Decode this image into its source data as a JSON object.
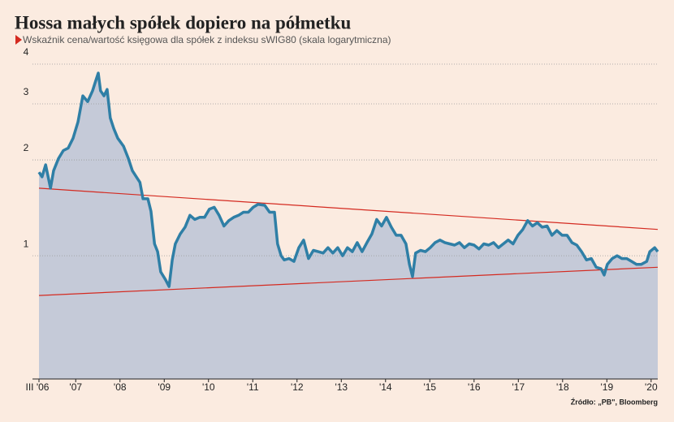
{
  "chart_data": {
    "type": "line",
    "title": "Hossa małych spółek dopiero na półmetku",
    "subtitle": "Wskaźnik cena/wartość księgowa dla spółek z indeksu sWIG80 (skala logarytmiczna)",
    "source": "Źródło: „PB\", Bloomberg",
    "log_scale": true,
    "grid": true,
    "line_color": "#2f7fa6",
    "area_color": "#c5cad8",
    "x": [
      2006.17,
      2006.24,
      2006.32,
      2006.43,
      2006.5,
      2006.61,
      2006.72,
      2006.83,
      2006.94,
      2007.05,
      2007.16,
      2007.27,
      2007.38,
      2007.45,
      2007.51,
      2007.56,
      2007.64,
      2007.71,
      2007.78,
      2007.86,
      2007.95,
      2008.08,
      2008.19,
      2008.28,
      2008.37,
      2008.45,
      2008.52,
      2008.63,
      2008.7,
      2008.78,
      2008.85,
      2008.92,
      2009.03,
      2009.11,
      2009.18,
      2009.25,
      2009.36,
      2009.47,
      2009.58,
      2009.69,
      2009.8,
      2009.91,
      2010.02,
      2010.13,
      2010.24,
      2010.35,
      2010.46,
      2010.57,
      2010.68,
      2010.79,
      2010.9,
      2011.01,
      2011.12,
      2011.27,
      2011.38,
      2011.49,
      2011.56,
      2011.64,
      2011.71,
      2011.82,
      2011.93,
      2012.04,
      2012.15,
      2012.26,
      2012.37,
      2012.48,
      2012.59,
      2012.7,
      2012.81,
      2012.92,
      2013.03,
      2013.14,
      2013.25,
      2013.36,
      2013.47,
      2013.58,
      2013.69,
      2013.8,
      2013.91,
      2014.02,
      2014.13,
      2014.24,
      2014.35,
      2014.46,
      2014.54,
      2014.61,
      2014.68,
      2014.79,
      2014.9,
      2015.01,
      2015.12,
      2015.23,
      2015.34,
      2015.45,
      2015.56,
      2015.67,
      2015.78,
      2015.89,
      2016.0,
      2016.11,
      2016.22,
      2016.33,
      2016.44,
      2016.55,
      2016.66,
      2016.77,
      2016.88,
      2016.99,
      2017.1,
      2017.21,
      2017.32,
      2017.43,
      2017.54,
      2017.65,
      2017.76,
      2017.87,
      2017.99,
      2018.1,
      2018.21,
      2018.32,
      2018.43,
      2018.54,
      2018.65,
      2018.76,
      2018.87,
      2018.94,
      2019.01,
      2019.12,
      2019.23,
      2019.34,
      2019.45,
      2019.56,
      2019.67,
      2019.78,
      2019.9,
      2019.97,
      2020.08,
      2020.15
    ],
    "values": [
      1.83,
      1.77,
      1.93,
      1.63,
      1.85,
      2.02,
      2.14,
      2.18,
      2.34,
      2.63,
      3.18,
      3.05,
      3.3,
      3.54,
      3.75,
      3.3,
      3.18,
      3.33,
      2.71,
      2.51,
      2.34,
      2.21,
      2.02,
      1.85,
      1.77,
      1.7,
      1.51,
      1.51,
      1.38,
      1.09,
      1.03,
      0.89,
      0.84,
      0.8,
      0.97,
      1.09,
      1.17,
      1.23,
      1.34,
      1.3,
      1.32,
      1.32,
      1.4,
      1.42,
      1.34,
      1.24,
      1.29,
      1.32,
      1.34,
      1.37,
      1.37,
      1.42,
      1.45,
      1.44,
      1.37,
      1.37,
      1.09,
      1.0,
      0.97,
      0.98,
      0.96,
      1.06,
      1.12,
      0.98,
      1.04,
      1.03,
      1.02,
      1.06,
      1.02,
      1.06,
      1.0,
      1.06,
      1.03,
      1.1,
      1.03,
      1.1,
      1.17,
      1.3,
      1.24,
      1.32,
      1.23,
      1.16,
      1.16,
      1.09,
      0.94,
      0.86,
      1.02,
      1.04,
      1.03,
      1.06,
      1.1,
      1.12,
      1.1,
      1.09,
      1.08,
      1.1,
      1.06,
      1.09,
      1.08,
      1.05,
      1.09,
      1.08,
      1.1,
      1.06,
      1.09,
      1.12,
      1.09,
      1.16,
      1.21,
      1.29,
      1.24,
      1.27,
      1.23,
      1.24,
      1.16,
      1.2,
      1.16,
      1.16,
      1.1,
      1.08,
      1.03,
      0.97,
      0.98,
      0.92,
      0.91,
      0.87,
      0.94,
      0.98,
      1.0,
      0.98,
      0.98,
      0.96,
      0.94,
      0.94,
      0.96,
      1.03,
      1.06,
      1.03
    ],
    "trend_lines": [
      {
        "color": "#d42a20",
        "x": [
          2006.17,
          2020.15
        ],
        "values": [
          1.63,
          1.21
        ]
      },
      {
        "color": "#d42a20",
        "x": [
          2006.17,
          2020.15
        ],
        "values": [
          0.75,
          0.92
        ]
      }
    ],
    "xlim": [
      2006.17,
      2020.15
    ],
    "xticks": [
      {
        "value": 2006.17,
        "label": "III '06"
      },
      {
        "value": 2007,
        "label": "'07"
      },
      {
        "value": 2008,
        "label": "'08"
      },
      {
        "value": 2009,
        "label": "'09"
      },
      {
        "value": 2010,
        "label": "'10"
      },
      {
        "value": 2011,
        "label": "'11"
      },
      {
        "value": 2012,
        "label": "'12"
      },
      {
        "value": 2013,
        "label": "'13"
      },
      {
        "value": 2014,
        "label": "'14"
      },
      {
        "value": 2015,
        "label": "'15"
      },
      {
        "value": 2016,
        "label": "'16"
      },
      {
        "value": 2017,
        "label": "'17"
      },
      {
        "value": 2018,
        "label": "'18"
      },
      {
        "value": 2019,
        "label": "'19"
      },
      {
        "value": 2020,
        "label": "'20"
      }
    ],
    "ylim": [
      0.41,
      4
    ],
    "yticks": [
      1,
      2,
      3,
      4
    ]
  }
}
